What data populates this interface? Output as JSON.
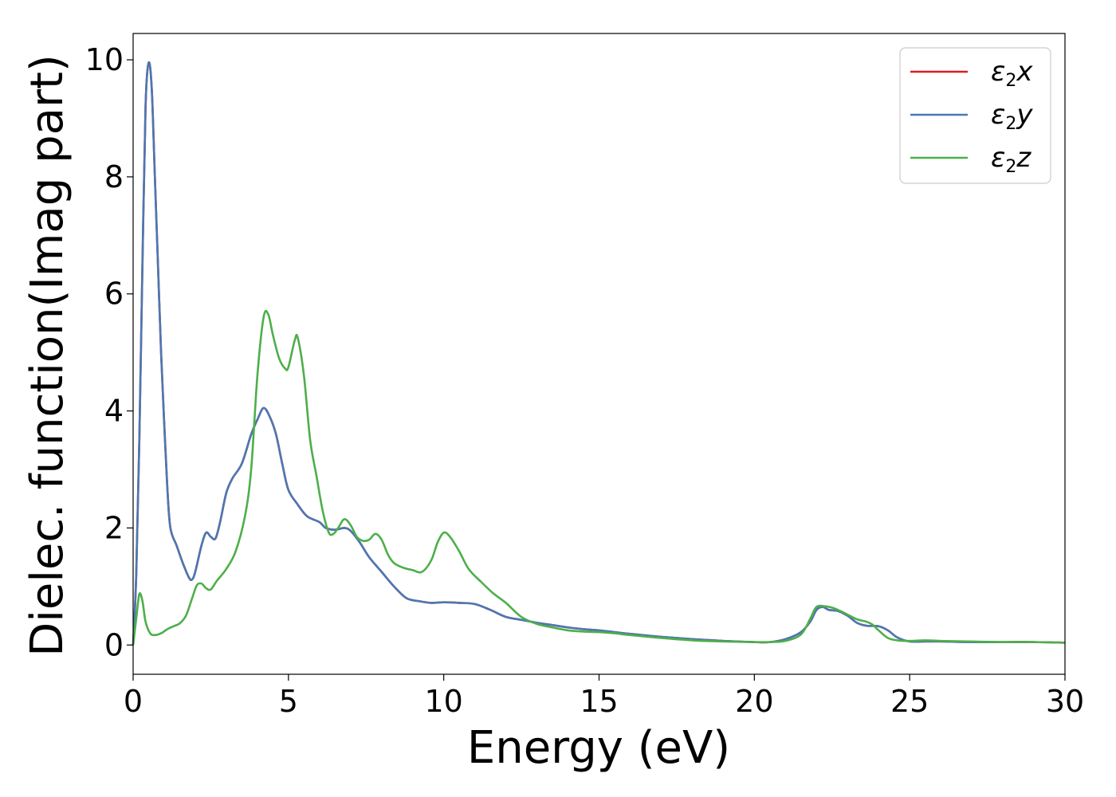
{
  "chart_data": {
    "type": "line",
    "xlabel": "Energy (eV)",
    "ylabel": "Dielec. function(Imag part)",
    "xlim": [
      0,
      30
    ],
    "ylim": [
      -0.5,
      10.45
    ],
    "xticks": [
      0,
      5,
      10,
      15,
      20,
      25,
      30
    ],
    "yticks": [
      0,
      2,
      4,
      6,
      8,
      10
    ],
    "grid": false,
    "legend_position": "top-right",
    "series": [
      {
        "name": "ε2x",
        "legend_main": "ε",
        "legend_sub": "2",
        "legend_var": "x",
        "color": "#e41a1c",
        "points": [
          [
            0,
            0
          ],
          [
            0.1,
            1.2
          ],
          [
            0.2,
            3.5
          ],
          [
            0.3,
            6.5
          ],
          [
            0.4,
            9.2
          ],
          [
            0.5,
            9.95
          ],
          [
            0.6,
            9.5
          ],
          [
            0.7,
            8
          ],
          [
            0.8,
            6.5
          ],
          [
            0.9,
            5
          ],
          [
            1.0,
            3.8
          ],
          [
            1.1,
            2.7
          ],
          [
            1.2,
            2.0
          ],
          [
            1.4,
            1.7
          ],
          [
            1.6,
            1.4
          ],
          [
            1.8,
            1.15
          ],
          [
            1.9,
            1.12
          ],
          [
            2.0,
            1.25
          ],
          [
            2.2,
            1.7
          ],
          [
            2.35,
            1.92
          ],
          [
            2.5,
            1.85
          ],
          [
            2.65,
            1.82
          ],
          [
            2.8,
            2.1
          ],
          [
            3.0,
            2.6
          ],
          [
            3.2,
            2.85
          ],
          [
            3.5,
            3.1
          ],
          [
            3.8,
            3.6
          ],
          [
            4.0,
            3.85
          ],
          [
            4.2,
            4.05
          ],
          [
            4.4,
            3.9
          ],
          [
            4.6,
            3.6
          ],
          [
            4.8,
            3.1
          ],
          [
            5.0,
            2.65
          ],
          [
            5.3,
            2.4
          ],
          [
            5.6,
            2.2
          ],
          [
            6.0,
            2.1
          ],
          [
            6.2,
            2.0
          ],
          [
            6.5,
            1.97
          ],
          [
            6.8,
            2.0
          ],
          [
            7.0,
            1.95
          ],
          [
            7.3,
            1.75
          ],
          [
            7.6,
            1.5
          ],
          [
            8.0,
            1.25
          ],
          [
            8.4,
            1.0
          ],
          [
            8.8,
            0.8
          ],
          [
            9.2,
            0.75
          ],
          [
            9.6,
            0.72
          ],
          [
            10.0,
            0.73
          ],
          [
            10.5,
            0.72
          ],
          [
            11.0,
            0.7
          ],
          [
            11.5,
            0.6
          ],
          [
            12.0,
            0.48
          ],
          [
            12.5,
            0.43
          ],
          [
            13.0,
            0.38
          ],
          [
            13.5,
            0.34
          ],
          [
            14.0,
            0.3
          ],
          [
            14.5,
            0.27
          ],
          [
            15.0,
            0.25
          ],
          [
            15.5,
            0.22
          ],
          [
            16.0,
            0.19
          ],
          [
            17.0,
            0.14
          ],
          [
            18.0,
            0.1
          ],
          [
            19.0,
            0.07
          ],
          [
            20.0,
            0.05
          ],
          [
            20.5,
            0.05
          ],
          [
            21.0,
            0.1
          ],
          [
            21.5,
            0.22
          ],
          [
            21.8,
            0.4
          ],
          [
            22.0,
            0.6
          ],
          [
            22.2,
            0.65
          ],
          [
            22.4,
            0.6
          ],
          [
            22.7,
            0.58
          ],
          [
            23.0,
            0.5
          ],
          [
            23.3,
            0.38
          ],
          [
            23.6,
            0.33
          ],
          [
            24.0,
            0.32
          ],
          [
            24.3,
            0.25
          ],
          [
            24.6,
            0.13
          ],
          [
            25.0,
            0.06
          ],
          [
            25.5,
            0.06
          ],
          [
            26.0,
            0.06
          ],
          [
            27.0,
            0.05
          ],
          [
            28.0,
            0.05
          ],
          [
            29.0,
            0.05
          ],
          [
            30.0,
            0.04
          ]
        ]
      },
      {
        "name": "ε2y",
        "legend_main": "ε",
        "legend_sub": "2",
        "legend_var": "y",
        "color": "#4a78b3",
        "points": [
          [
            0,
            0
          ],
          [
            0.1,
            1.2
          ],
          [
            0.2,
            3.5
          ],
          [
            0.3,
            6.5
          ],
          [
            0.4,
            9.2
          ],
          [
            0.5,
            9.95
          ],
          [
            0.6,
            9.5
          ],
          [
            0.7,
            8
          ],
          [
            0.8,
            6.5
          ],
          [
            0.9,
            5
          ],
          [
            1.0,
            3.8
          ],
          [
            1.1,
            2.7
          ],
          [
            1.2,
            2.0
          ],
          [
            1.4,
            1.7
          ],
          [
            1.6,
            1.4
          ],
          [
            1.8,
            1.15
          ],
          [
            1.9,
            1.12
          ],
          [
            2.0,
            1.25
          ],
          [
            2.2,
            1.7
          ],
          [
            2.35,
            1.92
          ],
          [
            2.5,
            1.85
          ],
          [
            2.65,
            1.82
          ],
          [
            2.8,
            2.1
          ],
          [
            3.0,
            2.6
          ],
          [
            3.2,
            2.85
          ],
          [
            3.5,
            3.1
          ],
          [
            3.8,
            3.6
          ],
          [
            4.0,
            3.85
          ],
          [
            4.2,
            4.05
          ],
          [
            4.4,
            3.9
          ],
          [
            4.6,
            3.6
          ],
          [
            4.8,
            3.1
          ],
          [
            5.0,
            2.65
          ],
          [
            5.3,
            2.4
          ],
          [
            5.6,
            2.2
          ],
          [
            6.0,
            2.1
          ],
          [
            6.2,
            2.0
          ],
          [
            6.5,
            1.97
          ],
          [
            6.8,
            2.0
          ],
          [
            7.0,
            1.95
          ],
          [
            7.3,
            1.75
          ],
          [
            7.6,
            1.5
          ],
          [
            8.0,
            1.25
          ],
          [
            8.4,
            1.0
          ],
          [
            8.8,
            0.8
          ],
          [
            9.2,
            0.75
          ],
          [
            9.6,
            0.72
          ],
          [
            10.0,
            0.73
          ],
          [
            10.5,
            0.72
          ],
          [
            11.0,
            0.7
          ],
          [
            11.5,
            0.6
          ],
          [
            12.0,
            0.48
          ],
          [
            12.5,
            0.43
          ],
          [
            13.0,
            0.38
          ],
          [
            13.5,
            0.34
          ],
          [
            14.0,
            0.3
          ],
          [
            14.5,
            0.27
          ],
          [
            15.0,
            0.25
          ],
          [
            15.5,
            0.22
          ],
          [
            16.0,
            0.19
          ],
          [
            17.0,
            0.14
          ],
          [
            18.0,
            0.1
          ],
          [
            19.0,
            0.07
          ],
          [
            20.0,
            0.05
          ],
          [
            20.5,
            0.05
          ],
          [
            21.0,
            0.1
          ],
          [
            21.5,
            0.22
          ],
          [
            21.8,
            0.4
          ],
          [
            22.0,
            0.6
          ],
          [
            22.2,
            0.65
          ],
          [
            22.4,
            0.6
          ],
          [
            22.7,
            0.58
          ],
          [
            23.0,
            0.5
          ],
          [
            23.3,
            0.38
          ],
          [
            23.6,
            0.33
          ],
          [
            24.0,
            0.32
          ],
          [
            24.3,
            0.25
          ],
          [
            24.6,
            0.13
          ],
          [
            25.0,
            0.06
          ],
          [
            25.5,
            0.06
          ],
          [
            26.0,
            0.06
          ],
          [
            27.0,
            0.05
          ],
          [
            28.0,
            0.05
          ],
          [
            29.0,
            0.05
          ],
          [
            30.0,
            0.04
          ]
        ]
      },
      {
        "name": "ε2z",
        "legend_main": "ε",
        "legend_sub": "2",
        "legend_var": "z",
        "color": "#4daf4a",
        "points": [
          [
            0,
            0
          ],
          [
            0.1,
            0.45
          ],
          [
            0.2,
            0.87
          ],
          [
            0.3,
            0.75
          ],
          [
            0.4,
            0.4
          ],
          [
            0.55,
            0.2
          ],
          [
            0.7,
            0.17
          ],
          [
            0.9,
            0.2
          ],
          [
            1.1,
            0.27
          ],
          [
            1.3,
            0.32
          ],
          [
            1.5,
            0.37
          ],
          [
            1.7,
            0.5
          ],
          [
            1.9,
            0.8
          ],
          [
            2.05,
            1.02
          ],
          [
            2.2,
            1.05
          ],
          [
            2.35,
            0.97
          ],
          [
            2.5,
            0.95
          ],
          [
            2.7,
            1.1
          ],
          [
            3.0,
            1.3
          ],
          [
            3.3,
            1.6
          ],
          [
            3.6,
            2.2
          ],
          [
            3.8,
            3.0
          ],
          [
            4.0,
            4.6
          ],
          [
            4.2,
            5.6
          ],
          [
            4.35,
            5.65
          ],
          [
            4.5,
            5.3
          ],
          [
            4.7,
            4.9
          ],
          [
            4.9,
            4.72
          ],
          [
            5.0,
            4.75
          ],
          [
            5.2,
            5.2
          ],
          [
            5.3,
            5.25
          ],
          [
            5.5,
            4.6
          ],
          [
            5.7,
            3.5
          ],
          [
            5.9,
            2.9
          ],
          [
            6.1,
            2.3
          ],
          [
            6.3,
            1.92
          ],
          [
            6.45,
            1.9
          ],
          [
            6.6,
            2.0
          ],
          [
            6.8,
            2.15
          ],
          [
            7.0,
            2.05
          ],
          [
            7.2,
            1.85
          ],
          [
            7.4,
            1.78
          ],
          [
            7.6,
            1.8
          ],
          [
            7.8,
            1.9
          ],
          [
            8.0,
            1.8
          ],
          [
            8.2,
            1.55
          ],
          [
            8.4,
            1.4
          ],
          [
            8.7,
            1.32
          ],
          [
            9.0,
            1.28
          ],
          [
            9.3,
            1.25
          ],
          [
            9.6,
            1.45
          ],
          [
            9.8,
            1.75
          ],
          [
            10.0,
            1.92
          ],
          [
            10.2,
            1.85
          ],
          [
            10.5,
            1.6
          ],
          [
            10.8,
            1.3
          ],
          [
            11.2,
            1.08
          ],
          [
            11.6,
            0.88
          ],
          [
            12.0,
            0.72
          ],
          [
            12.5,
            0.48
          ],
          [
            13.0,
            0.36
          ],
          [
            13.5,
            0.3
          ],
          [
            14.0,
            0.25
          ],
          [
            14.5,
            0.23
          ],
          [
            15.0,
            0.22
          ],
          [
            15.5,
            0.2
          ],
          [
            16.0,
            0.17
          ],
          [
            17.0,
            0.12
          ],
          [
            18.0,
            0.08
          ],
          [
            19.0,
            0.06
          ],
          [
            20.0,
            0.05
          ],
          [
            20.5,
            0.05
          ],
          [
            21.0,
            0.07
          ],
          [
            21.5,
            0.18
          ],
          [
            21.8,
            0.45
          ],
          [
            22.0,
            0.65
          ],
          [
            22.3,
            0.66
          ],
          [
            22.6,
            0.62
          ],
          [
            23.0,
            0.52
          ],
          [
            23.3,
            0.44
          ],
          [
            23.6,
            0.4
          ],
          [
            23.8,
            0.35
          ],
          [
            24.0,
            0.25
          ],
          [
            24.3,
            0.12
          ],
          [
            24.6,
            0.08
          ],
          [
            25.0,
            0.07
          ],
          [
            25.5,
            0.08
          ],
          [
            26.0,
            0.07
          ],
          [
            27.0,
            0.06
          ],
          [
            28.0,
            0.05
          ],
          [
            29.0,
            0.05
          ],
          [
            30.0,
            0.04
          ]
        ]
      }
    ]
  }
}
